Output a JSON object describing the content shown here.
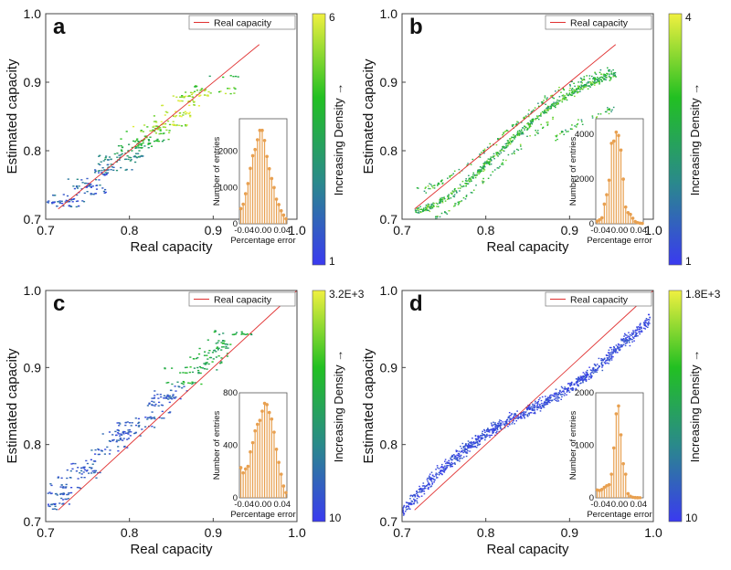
{
  "chart_data": [
    {
      "panel": "a",
      "type": "heatmap",
      "xlabel": "Real capacity",
      "ylabel": "Estimated capacity",
      "xlim": [
        0.7,
        1.0
      ],
      "ylim": [
        0.7,
        1.0
      ],
      "xticks": [
        "0.7",
        "0.8",
        "0.9",
        "1.0"
      ],
      "yticks": [
        "0.7",
        "0.8",
        "0.9",
        "1.0"
      ],
      "legend": "Real capacity",
      "legend_placement": "top-right",
      "reference_line": {
        "name": "Real capacity",
        "color": "#e03030"
      },
      "colorbar": {
        "label": "Increasing Density →",
        "min_label": "1",
        "max_label": "6",
        "colors": [
          "#3a3af0",
          "#2a8a8a",
          "#22c022",
          "#f0f040"
        ]
      },
      "inset": {
        "type": "bar",
        "xlabel": "Percentage error",
        "ylabel": "Number of entries",
        "xticks": [
          "-0.04",
          "0.00",
          "0.04"
        ],
        "yticks": [
          "0",
          "1000",
          "2000"
        ],
        "ylim": [
          0,
          2900
        ],
        "xlim": [
          -0.05,
          0.05
        ],
        "color": "#e8a050",
        "x": [
          -0.047,
          -0.042,
          -0.037,
          -0.032,
          -0.027,
          -0.022,
          -0.017,
          -0.012,
          -0.007,
          -0.002,
          0.003,
          0.008,
          0.013,
          0.018,
          0.023,
          0.028,
          0.033,
          0.038,
          0.043,
          0.048
        ],
        "values": [
          420,
          540,
          830,
          1110,
          1530,
          1880,
          2050,
          2320,
          2580,
          2580,
          2300,
          1860,
          1520,
          1250,
          1000,
          680,
          530,
          360,
          240,
          140
        ]
      }
    },
    {
      "panel": "b",
      "type": "heatmap",
      "xlabel": "Real capacity",
      "ylabel": "Estimated capacity",
      "xlim": [
        0.7,
        1.0
      ],
      "ylim": [
        0.7,
        1.0
      ],
      "xticks": [
        "0.7",
        "0.8",
        "0.9",
        "1.0"
      ],
      "yticks": [
        "0.7",
        "0.8",
        "0.9",
        "1.0"
      ],
      "legend": "Real capacity",
      "legend_placement": "top-right",
      "reference_line": {
        "name": "Real capacity",
        "color": "#e03030"
      },
      "colorbar": {
        "label": "Increasing Density →",
        "min_label": "1",
        "max_label": "4",
        "colors": [
          "#3a3af0",
          "#2a8a8a",
          "#22c022",
          "#f0f040"
        ]
      },
      "inset": {
        "type": "bar",
        "xlabel": "Percentage error",
        "ylabel": "Number of entries",
        "xticks": [
          "-0.04",
          "0.00",
          "0.04"
        ],
        "yticks": [
          "0",
          "2000",
          "4000"
        ],
        "ylim": [
          0,
          4700
        ],
        "xlim": [
          -0.05,
          0.05
        ],
        "color": "#e8a050",
        "x": [
          -0.047,
          -0.042,
          -0.037,
          -0.032,
          -0.027,
          -0.022,
          -0.017,
          -0.012,
          -0.007,
          -0.002,
          0.003,
          0.008,
          0.013,
          0.018,
          0.023,
          0.028,
          0.033,
          0.038,
          0.043,
          0.048
        ],
        "values": [
          120,
          180,
          270,
          880,
          1300,
          1950,
          3600,
          3700,
          4100,
          3950,
          3300,
          2000,
          750,
          500,
          420,
          250,
          100,
          50,
          30,
          20
        ]
      }
    },
    {
      "panel": "c",
      "type": "heatmap",
      "xlabel": "Real capacity",
      "ylabel": "Estimated capacity",
      "xlim": [
        0.7,
        1.0
      ],
      "ylim": [
        0.7,
        1.0
      ],
      "xticks": [
        "0.7",
        "0.8",
        "0.9",
        "1.0"
      ],
      "yticks": [
        "0.7",
        "0.8",
        "0.9",
        "1.0"
      ],
      "legend": "Real capacity",
      "legend_placement": "top-right",
      "reference_line": {
        "name": "Real capacity",
        "color": "#e03030"
      },
      "colorbar": {
        "label": "Increasing Density →",
        "min_label": "10",
        "max_label": "3.2E+3",
        "colors": [
          "#3a3af0",
          "#2a8a8a",
          "#22c022",
          "#f0f040"
        ]
      },
      "inset": {
        "type": "bar",
        "xlabel": "Percentage error",
        "ylabel": "Number of entries",
        "xticks": [
          "-0.04",
          "0.00",
          "0.04"
        ],
        "yticks": [
          "0",
          "400",
          "800"
        ],
        "ylim": [
          0,
          800
        ],
        "xlim": [
          -0.05,
          0.05
        ],
        "color": "#e8a050",
        "x": [
          -0.047,
          -0.042,
          -0.037,
          -0.032,
          -0.027,
          -0.022,
          -0.017,
          -0.012,
          -0.007,
          -0.002,
          0.003,
          0.008,
          0.013,
          0.018,
          0.023,
          0.028,
          0.033,
          0.038,
          0.043,
          0.048
        ],
        "values": [
          230,
          190,
          220,
          240,
          350,
          420,
          510,
          560,
          590,
          660,
          720,
          710,
          650,
          600,
          500,
          370,
          270,
          180,
          90,
          40
        ]
      }
    },
    {
      "panel": "d",
      "type": "heatmap",
      "xlabel": "Real capacity",
      "ylabel": "Estimated capacity",
      "xlim": [
        0.7,
        1.0
      ],
      "ylim": [
        0.7,
        1.0
      ],
      "xticks": [
        "0.7",
        "0.8",
        "0.9",
        "1.0"
      ],
      "yticks": [
        "0.7",
        "0.8",
        "0.9",
        "1.0"
      ],
      "legend": "Real capacity",
      "legend_placement": "top-right",
      "reference_line": {
        "name": "Real capacity",
        "color": "#e03030"
      },
      "colorbar": {
        "label": "Increasing Density →",
        "min_label": "10",
        "max_label": "1.8E+3",
        "colors": [
          "#3a3af0",
          "#2a8a8a",
          "#22c022",
          "#f0f040"
        ]
      },
      "inset": {
        "type": "bar",
        "xlabel": "Percentage error",
        "ylabel": "Number of entries",
        "xticks": [
          "-0.04",
          "0.00",
          "0.04"
        ],
        "yticks": [
          "0",
          "1000",
          "2000"
        ],
        "ylim": [
          0,
          2000
        ],
        "xlim": [
          -0.05,
          0.05
        ],
        "color": "#e8a050",
        "x": [
          -0.047,
          -0.042,
          -0.037,
          -0.032,
          -0.027,
          -0.022,
          -0.017,
          -0.012,
          -0.007,
          -0.002,
          0.003,
          0.008,
          0.013,
          0.018,
          0.023,
          0.028,
          0.033,
          0.038,
          0.043
        ],
        "values": [
          150,
          140,
          160,
          200,
          230,
          250,
          450,
          950,
          1600,
          1750,
          1200,
          650,
          450,
          80,
          30,
          10,
          5,
          3,
          2
        ]
      }
    }
  ]
}
